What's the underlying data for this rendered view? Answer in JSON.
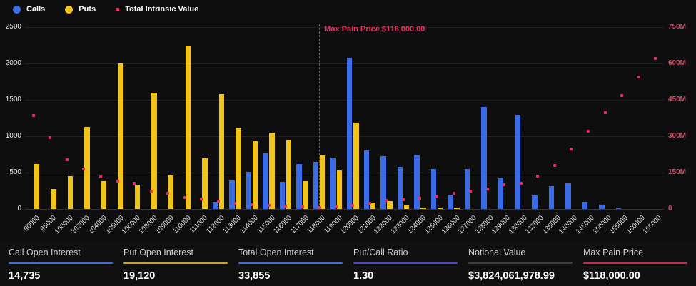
{
  "legend": [
    {
      "label": "Calls",
      "color": "#3b6ce8",
      "marker": "circle"
    },
    {
      "label": "Puts",
      "color": "#f2c318",
      "marker": "circle"
    },
    {
      "label": "Total Intrinsic Value",
      "color": "#ec2d5e",
      "marker": "square"
    }
  ],
  "chart_data": {
    "type": "bar",
    "title": "",
    "grid": true,
    "legend_position": "top-left",
    "categories": [
      "90000",
      "95000",
      "100000",
      "102000",
      "104000",
      "105000",
      "106000",
      "108000",
      "109000",
      "110000",
      "111000",
      "112000",
      "113000",
      "114000",
      "115000",
      "116000",
      "117000",
      "118000",
      "119000",
      "120000",
      "121000",
      "122000",
      "123000",
      "124000",
      "125000",
      "126000",
      "127000",
      "128000",
      "129000",
      "130000",
      "132000",
      "135000",
      "140000",
      "145000",
      "150000",
      "155000",
      "160000",
      "165000"
    ],
    "series": [
      {
        "name": "Calls",
        "render": "bar",
        "axis": "left",
        "color": "#3b6ce8",
        "values": [
          0,
          0,
          0,
          0,
          0,
          0,
          0,
          0,
          0,
          0,
          0,
          100,
          390,
          510,
          760,
          370,
          620,
          650,
          710,
          2080,
          800,
          730,
          580,
          740,
          550,
          200,
          550,
          1400,
          420,
          1290,
          190,
          310,
          350,
          100,
          55,
          15,
          0,
          0
        ]
      },
      {
        "name": "Puts",
        "render": "bar",
        "axis": "left",
        "color": "#f2c318",
        "values": [
          620,
          270,
          450,
          1130,
          380,
          2000,
          330,
          1600,
          460,
          2250,
          700,
          1580,
          1120,
          930,
          1050,
          950,
          380,
          740,
          530,
          1190,
          90,
          110,
          50,
          20,
          20,
          10,
          0,
          0,
          0,
          0,
          0,
          0,
          0,
          0,
          0,
          0,
          0,
          0
        ]
      },
      {
        "name": "Total Intrinsic Value",
        "render": "scatter",
        "axis": "right",
        "color": "#ec2d5e",
        "unit": "M",
        "values": [
          386,
          293,
          202,
          164,
          131,
          115,
          105,
          73,
          65,
          46,
          41,
          31,
          24,
          19,
          14,
          11,
          9,
          7,
          9,
          14,
          25,
          35,
          38,
          43,
          51,
          65,
          74,
          82,
          100,
          107,
          134,
          180,
          246,
          320,
          396,
          468,
          543,
          620
        ]
      }
    ],
    "left_axis": {
      "ticks": [
        "0",
        "500",
        "1000",
        "1500",
        "2000",
        "2500"
      ],
      "max": 2500,
      "tick_color": "#e6e6e6"
    },
    "right_axis": {
      "ticks": [
        "0",
        "150M",
        "300M",
        "450M",
        "600M",
        "750M"
      ],
      "max_millions": 750,
      "tick_color": "#d34e68"
    },
    "annotation": {
      "label": "Max Pain Price $118,000.00",
      "x_category": "118000",
      "color": "#ee2d5f",
      "line_color": "#cf2f5c"
    }
  },
  "footer": {
    "stats": [
      {
        "label": "Call Open Interest",
        "value": "14,735",
        "accent": "#3a6fd8"
      },
      {
        "label": "Put Open Interest",
        "value": "19,120",
        "accent": "#c9a227"
      },
      {
        "label": "Total Open Interest",
        "value": "33,855",
        "accent": "#3a6fd8"
      },
      {
        "label": "Put/Call Ratio",
        "value": "1.30",
        "accent": "#4d43c8"
      },
      {
        "label": "Notional Value",
        "value": "$3,824,061,978.99",
        "accent": "#3f3f3f"
      },
      {
        "label": "Max Pain Price",
        "value": "$118,000.00",
        "accent": "#c22b50"
      }
    ]
  }
}
